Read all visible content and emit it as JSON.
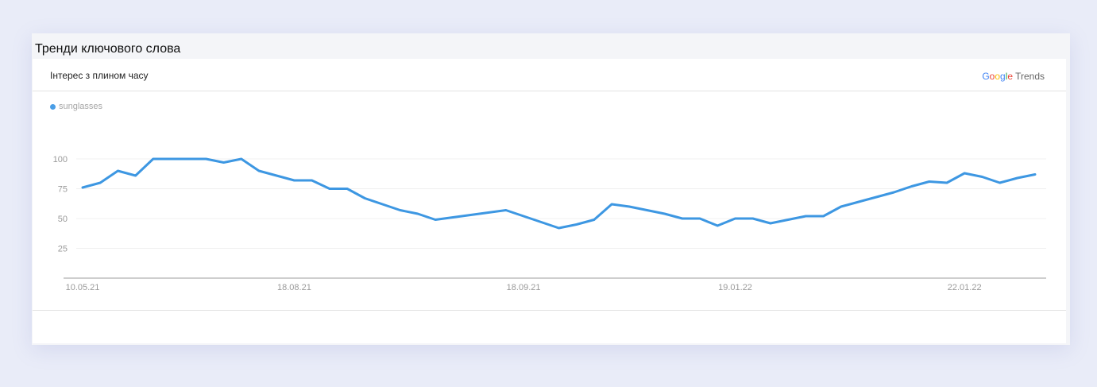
{
  "section_title": "Тренди ключового слова",
  "panel": {
    "title": "Інтерес з плином часу",
    "logo": {
      "g1": "G",
      "o1": "o",
      "o2": "o",
      "g2": "g",
      "l": "l",
      "e": "e",
      "trends": "Trends"
    }
  },
  "chart_data": {
    "type": "line",
    "title": "",
    "xlabel": "",
    "ylabel": "",
    "ylim": [
      0,
      100
    ],
    "yticks": [
      25,
      50,
      75,
      100
    ],
    "grid": true,
    "legend_position": "top-left",
    "x_tick_labels": [
      {
        "index": 0,
        "label": "10.05.21"
      },
      {
        "index": 12,
        "label": "18.08.21"
      },
      {
        "index": 25,
        "label": "18.09.21"
      },
      {
        "index": 37,
        "label": "19.01.22"
      },
      {
        "index": 50,
        "label": "22.01.22"
      }
    ],
    "series": [
      {
        "name": "sunglasses",
        "color": "#3d97e2",
        "values": [
          76,
          80,
          90,
          86,
          100,
          100,
          100,
          100,
          97,
          100,
          90,
          86,
          82,
          82,
          75,
          75,
          67,
          62,
          57,
          54,
          49,
          51,
          53,
          55,
          57,
          52,
          47,
          42,
          45,
          49,
          62,
          60,
          57,
          54,
          50,
          50,
          44,
          50,
          50,
          46,
          49,
          52,
          52,
          60,
          64,
          68,
          72,
          77,
          81,
          80,
          88,
          85,
          80,
          84,
          87
        ]
      }
    ]
  }
}
